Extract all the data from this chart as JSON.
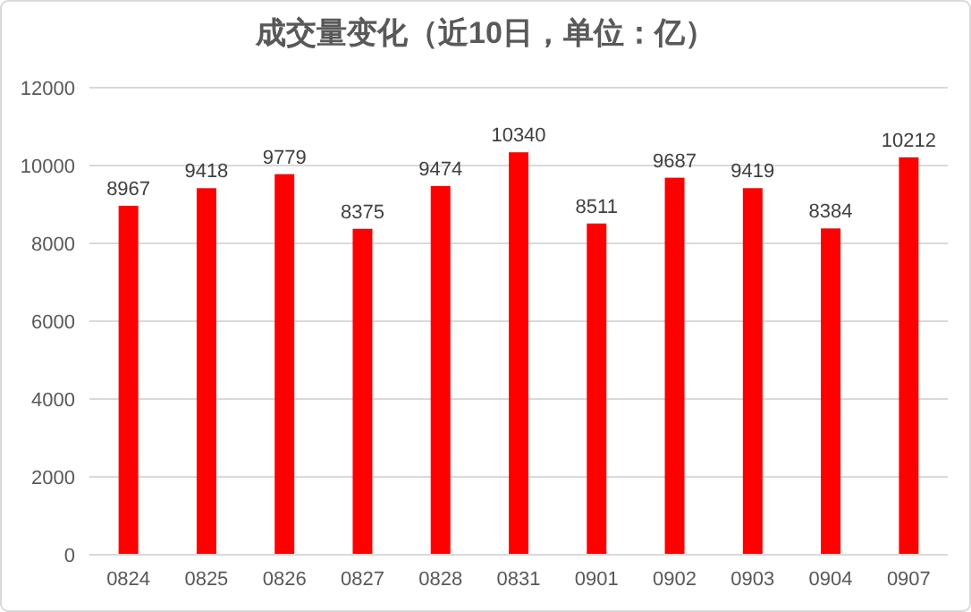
{
  "chart_data": {
    "type": "bar",
    "title": "成交量变化（近10日，单位：亿）",
    "categories": [
      "0824",
      "0825",
      "0826",
      "0827",
      "0828",
      "0831",
      "0901",
      "0902",
      "0903",
      "0904",
      "0907"
    ],
    "values": [
      8967,
      9418,
      9779,
      8375,
      9474,
      10340,
      8511,
      9687,
      9419,
      8384,
      10212
    ],
    "color": "#ff0000",
    "ylim": [
      0,
      12000
    ],
    "yticks": [
      0,
      2000,
      4000,
      6000,
      8000,
      10000,
      12000
    ],
    "grid": "y",
    "data_labels": true
  }
}
